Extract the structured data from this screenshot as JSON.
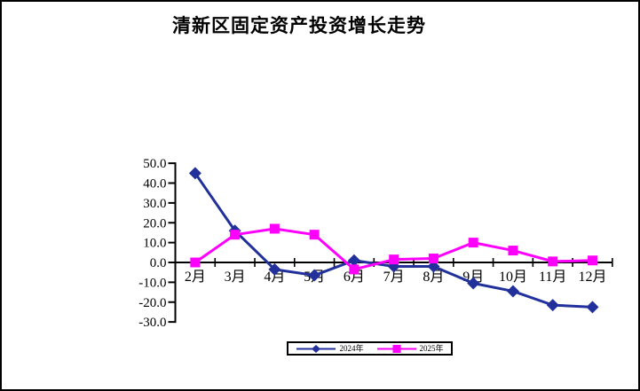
{
  "window": {
    "background_color": "#ffffff",
    "border_color": "#000000"
  },
  "chart_data": {
    "type": "line",
    "title": "清新区固定资产投资增长走势",
    "categories": [
      "2月",
      "3月",
      "4月",
      "5月",
      "6月",
      "7月",
      "8月",
      "9月",
      "10月",
      "11月",
      "12月"
    ],
    "series": [
      {
        "name": "2024年",
        "color": "#22309c",
        "marker": "diamond",
        "values": [
          45.0,
          16.0,
          -3.5,
          -6.5,
          1.0,
          -2.0,
          -2.0,
          -10.5,
          -14.5,
          -21.5,
          -22.5
        ]
      },
      {
        "name": "2025年",
        "color": "#ff00ff",
        "marker": "square",
        "values": [
          0.0,
          14.0,
          17.0,
          14.0,
          -3.5,
          1.5,
          2.0,
          10.0,
          6.0,
          0.5,
          1.0
        ]
      }
    ],
    "ylim": [
      -30,
      50
    ],
    "ytick_step": 10,
    "ytick_labels": [
      "50.0",
      "40.0",
      "30.0",
      "20.0",
      "10.0",
      "0.0",
      "-10.0",
      "-20.0",
      "-30.0"
    ],
    "xlabel": "",
    "ylabel": "",
    "grid": "off",
    "axis_color": "#000000",
    "legend_position": "bottom-center"
  }
}
